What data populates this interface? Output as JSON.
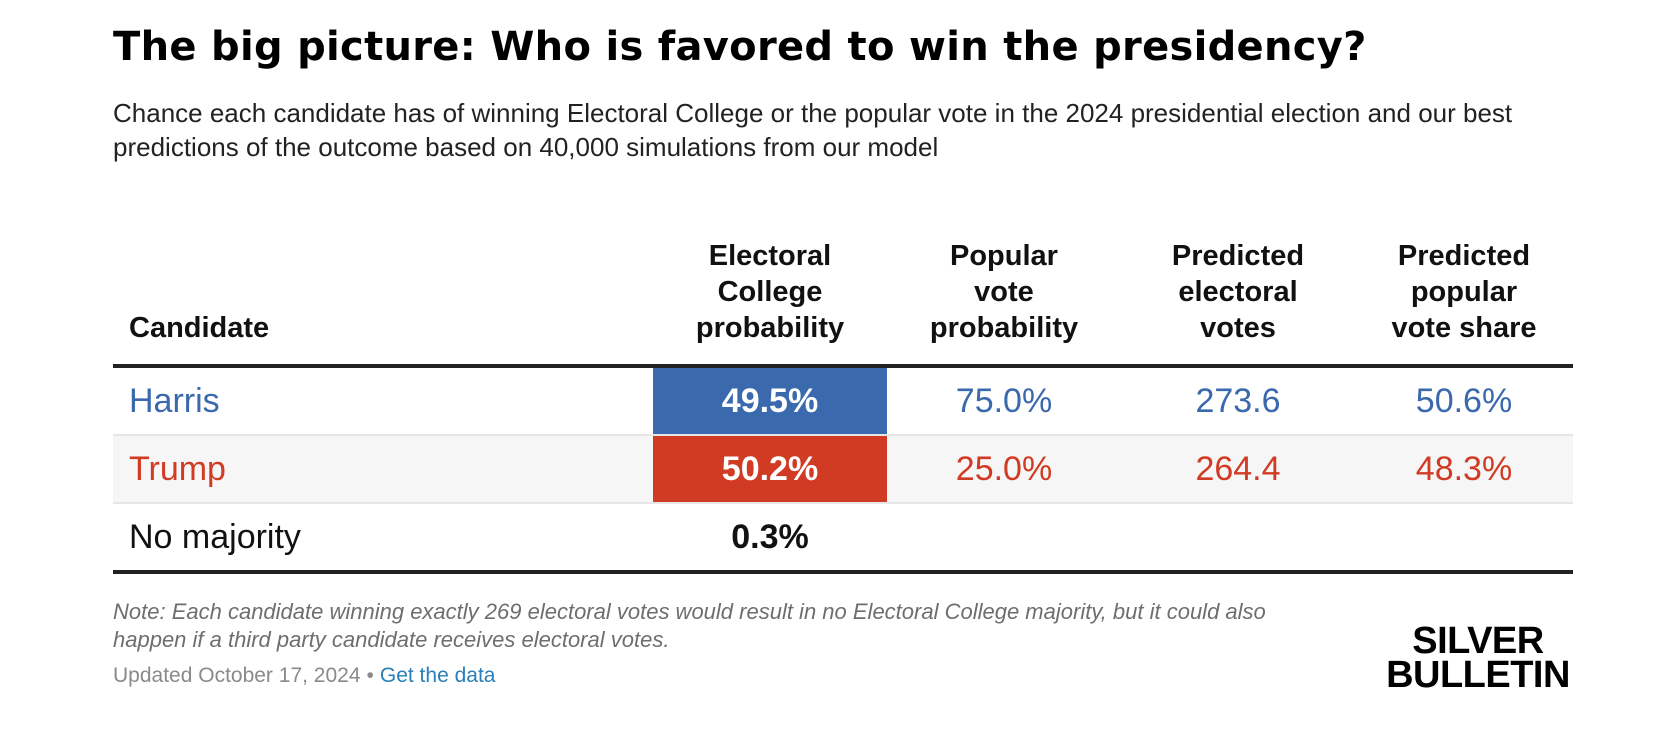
{
  "title": "The big picture: Who is favored to win the presidency?",
  "subtitle": "Chance each candidate has of winning Electoral College or the popular vote in the 2024 presidential election and our best predictions of the outcome based on 40,000 simulations from our model",
  "colors": {
    "harris": "#3a69ad",
    "trump": "#d13b24",
    "neutral": "#111111"
  },
  "chart_data": {
    "type": "table",
    "title": "The big picture: Who is favored to win the presidency?",
    "columns": [
      "Candidate",
      "Electoral\nCollege\nprobability",
      "Popular\nvote\nprobability",
      "Predicted\nelectoral\nvotes",
      "Predicted\npopular\nvote share"
    ],
    "rows": [
      {
        "candidate": "Harris",
        "ec_prob": "49.5%",
        "pv_prob": "75.0%",
        "ev": "273.6",
        "pv_share": "50.6%",
        "color": "#3a69ad"
      },
      {
        "candidate": "Trump",
        "ec_prob": "50.2%",
        "pv_prob": "25.0%",
        "ev": "264.4",
        "pv_share": "48.3%",
        "color": "#d13b24"
      },
      {
        "candidate": "No majority",
        "ec_prob": "0.3%",
        "pv_prob": "",
        "ev": "",
        "pv_share": "",
        "color": "#111111"
      }
    ]
  },
  "note": "Note: Each candidate winning exactly 269 electoral votes would result in no Electoral College majority, but it could also happen if a third party candidate receives electoral votes.",
  "footer": {
    "updated": "Updated October 17, 2024",
    "separator": "•",
    "link_label": "Get the data"
  },
  "logo": {
    "line1": "SILVER",
    "line2": "BULLETIN"
  }
}
